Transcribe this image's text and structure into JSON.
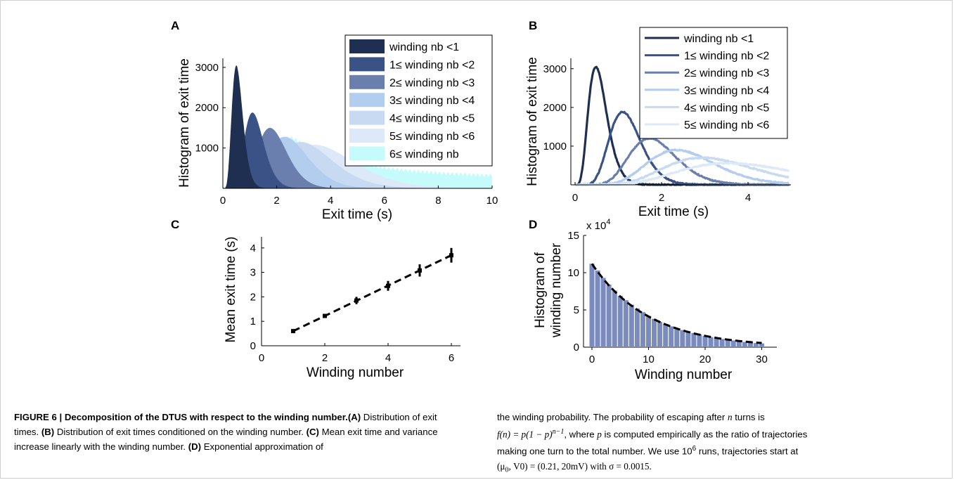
{
  "panels": {
    "A": {
      "letter": "A",
      "xlabel": "Exit time (s)",
      "ylabel": "Histogram of exit time",
      "xticks": [
        "0",
        "2",
        "4",
        "6",
        "8",
        "10"
      ],
      "yticks": [
        "1000",
        "2000",
        "3000"
      ],
      "legend": [
        "winding nb <1",
        "1≤ winding nb <2",
        "2≤ winding nb <3",
        "3≤ winding nb <4",
        "4≤ winding nb <5",
        "5≤ winding nb <6",
        "6≤ winding nb"
      ]
    },
    "B": {
      "letter": "B",
      "xlabel": "Exit time (s)",
      "ylabel": "Histogram of exit time",
      "xticks": [
        "0",
        "2",
        "4"
      ],
      "yticks": [
        "1000",
        "2000",
        "3000"
      ],
      "legend": [
        "winding nb <1",
        "1≤ winding nb <2",
        "2≤ winding nb <3",
        "3≤ winding nb <4",
        "4≤ winding nb <5",
        "5≤ winding nb <6"
      ]
    },
    "C": {
      "letter": "C",
      "xlabel": "Winding number",
      "ylabel": "Mean exit time (s)",
      "xticks": [
        "0",
        "2",
        "4",
        "6"
      ],
      "yticks": [
        "0",
        "1",
        "2",
        "3",
        "4"
      ]
    },
    "D": {
      "letter": "D",
      "xlabel": "Winding number",
      "ylabel_line1": "Histogram of",
      "ylabel_line2": "winding number",
      "multiplier_base": "x 10",
      "multiplier_exp": "4",
      "xticks": [
        "0",
        "10",
        "20",
        "30"
      ],
      "yticks": [
        "0",
        "5",
        "10",
        "15"
      ]
    }
  },
  "colors": {
    "s0": "#1f2f52",
    "s1": "#3b5286",
    "s2": "#6a7fae",
    "s3": "#b3cdef",
    "s4": "#c8daf2",
    "s5": "#dde9f8",
    "s6": "#c6fbfb",
    "bars_D": "#7a8cbf"
  },
  "chart_data": [
    {
      "panel": "A",
      "type": "area",
      "xlabel": "Exit time (s)",
      "ylabel": "Histogram of exit time",
      "xlim": [
        0,
        10
      ],
      "ylim": [
        0,
        3200
      ],
      "legend_position": "top-right",
      "series": [
        {
          "name": "winding nb <1",
          "peak_x": 0.5,
          "peak_y": 3050,
          "color": "#1f2f52"
        },
        {
          "name": "1≤ winding nb <2",
          "peak_x": 1.1,
          "peak_y": 1880,
          "color": "#3b5286"
        },
        {
          "name": "2≤ winding nb <3",
          "peak_x": 1.75,
          "peak_y": 1500,
          "color": "#6a7fae"
        },
        {
          "name": "3≤ winding nb <4",
          "peak_x": 2.3,
          "peak_y": 1280,
          "color": "#b3cdef"
        },
        {
          "name": "4≤ winding nb <5",
          "peak_x": 2.9,
          "peak_y": 1150,
          "color": "#c8daf2"
        },
        {
          "name": "5≤ winding nb <6",
          "peak_x": 3.4,
          "peak_y": 1080,
          "color": "#dde9f8"
        },
        {
          "name": "6≤ winding nb",
          "peak_x": 2.6,
          "peak_y": 1250,
          "tail_y_at_10": 280,
          "color": "#c6fbfb"
        }
      ]
    },
    {
      "panel": "B",
      "type": "line",
      "xlabel": "Exit time (s)",
      "ylabel": "Histogram of exit time",
      "xlim": [
        0,
        5
      ],
      "ylim": [
        0,
        3200
      ],
      "legend_position": "top-right",
      "series": [
        {
          "name": "winding nb <1",
          "peak_x": 0.48,
          "peak_y": 3050,
          "color": "#1f2f52"
        },
        {
          "name": "1≤ winding nb <2",
          "peak_x": 1.1,
          "peak_y": 1880,
          "color": "#3b5286"
        },
        {
          "name": "2≤ winding nb <3",
          "peak_x": 1.72,
          "peak_y": 1200,
          "color": "#6a7fae"
        },
        {
          "name": "3≤ winding nb <4",
          "peak_x": 2.35,
          "peak_y": 900,
          "color": "#b3cdef"
        },
        {
          "name": "4≤ winding nb <5",
          "peak_x": 2.95,
          "peak_y": 700,
          "color": "#c8daf2"
        },
        {
          "name": "5≤ winding nb <6",
          "peak_x": 3.55,
          "peak_y": 560,
          "color": "#dde9f8"
        }
      ]
    },
    {
      "panel": "C",
      "type": "scatter",
      "xlabel": "Winding number",
      "ylabel": "Mean exit time (s)",
      "xlim": [
        0,
        7
      ],
      "ylim": [
        0,
        4.3
      ],
      "x": [
        1,
        2,
        3,
        4,
        5,
        6
      ],
      "y": [
        0.6,
        1.22,
        1.85,
        2.45,
        3.08,
        3.7
      ],
      "error": [
        0.05,
        0.08,
        0.15,
        0.2,
        0.25,
        0.3
      ],
      "fit_line": {
        "x": [
          1,
          6
        ],
        "y": [
          0.6,
          3.7
        ],
        "style": "dashed"
      }
    },
    {
      "panel": "D",
      "type": "bar",
      "xlabel": "Winding number",
      "ylabel": "Histogram of winding number",
      "y_multiplier": "x 10^4",
      "xlim": [
        -1.5,
        31
      ],
      "ylim": [
        0,
        15
      ],
      "x": [
        0,
        1,
        2,
        3,
        4,
        5,
        6,
        7,
        8,
        9,
        10,
        11,
        12,
        13,
        14,
        15,
        16,
        17,
        18,
        19,
        20,
        21,
        22,
        23,
        24,
        25,
        26,
        27,
        28,
        29,
        30
      ],
      "values": [
        11.2,
        10.3,
        9.3,
        8.4,
        7.6,
        6.9,
        6.3,
        5.7,
        5.2,
        4.7,
        4.2,
        3.8,
        3.4,
        3.1,
        2.8,
        2.5,
        2.3,
        2.1,
        1.9,
        1.7,
        1.5,
        1.35,
        1.2,
        1.1,
        1.0,
        0.9,
        0.8,
        0.7,
        0.62,
        0.55,
        0.5
      ],
      "fit_curve": {
        "formula": "f(n) = p(1-p)^(n-1)",
        "style": "dashed"
      }
    }
  ],
  "caption": {
    "fig_label": "FIGURE 6 | ",
    "title": "Decomposition of the DTUS with respect to the winding number.",
    "a_label": "(A)",
    "a_text": " Distribution of exit times. ",
    "b_label": "(B)",
    "b_text": " Distribution of exit times conditioned on the winding number. ",
    "c_label": "(C)",
    "c_text": " Mean exit time and variance increase linearly with the winding number. ",
    "d_label": "(D)",
    "d_text": " Exponential approximation of",
    "right_line1_a": "the winding probability. The probability of escaping after ",
    "right_n": "n",
    "right_line1_b": " turns is",
    "right_formula": "f(n) = p(1 − p)",
    "right_formula_exp": "n−1",
    "right_line2_a": ", where ",
    "right_p": "p",
    "right_line2_b": " is computed empirically as the ratio of trajectories",
    "right_line3": "making one turn to the total number. We use 10",
    "right_runs_exp": "6",
    "right_line3_b": " runs, trajectories start at",
    "right_line4": "(μ",
    "right_line4_sub": "0",
    "right_line4_b": ", V0) = (0.21, 20mV) with σ = 0.0015."
  }
}
